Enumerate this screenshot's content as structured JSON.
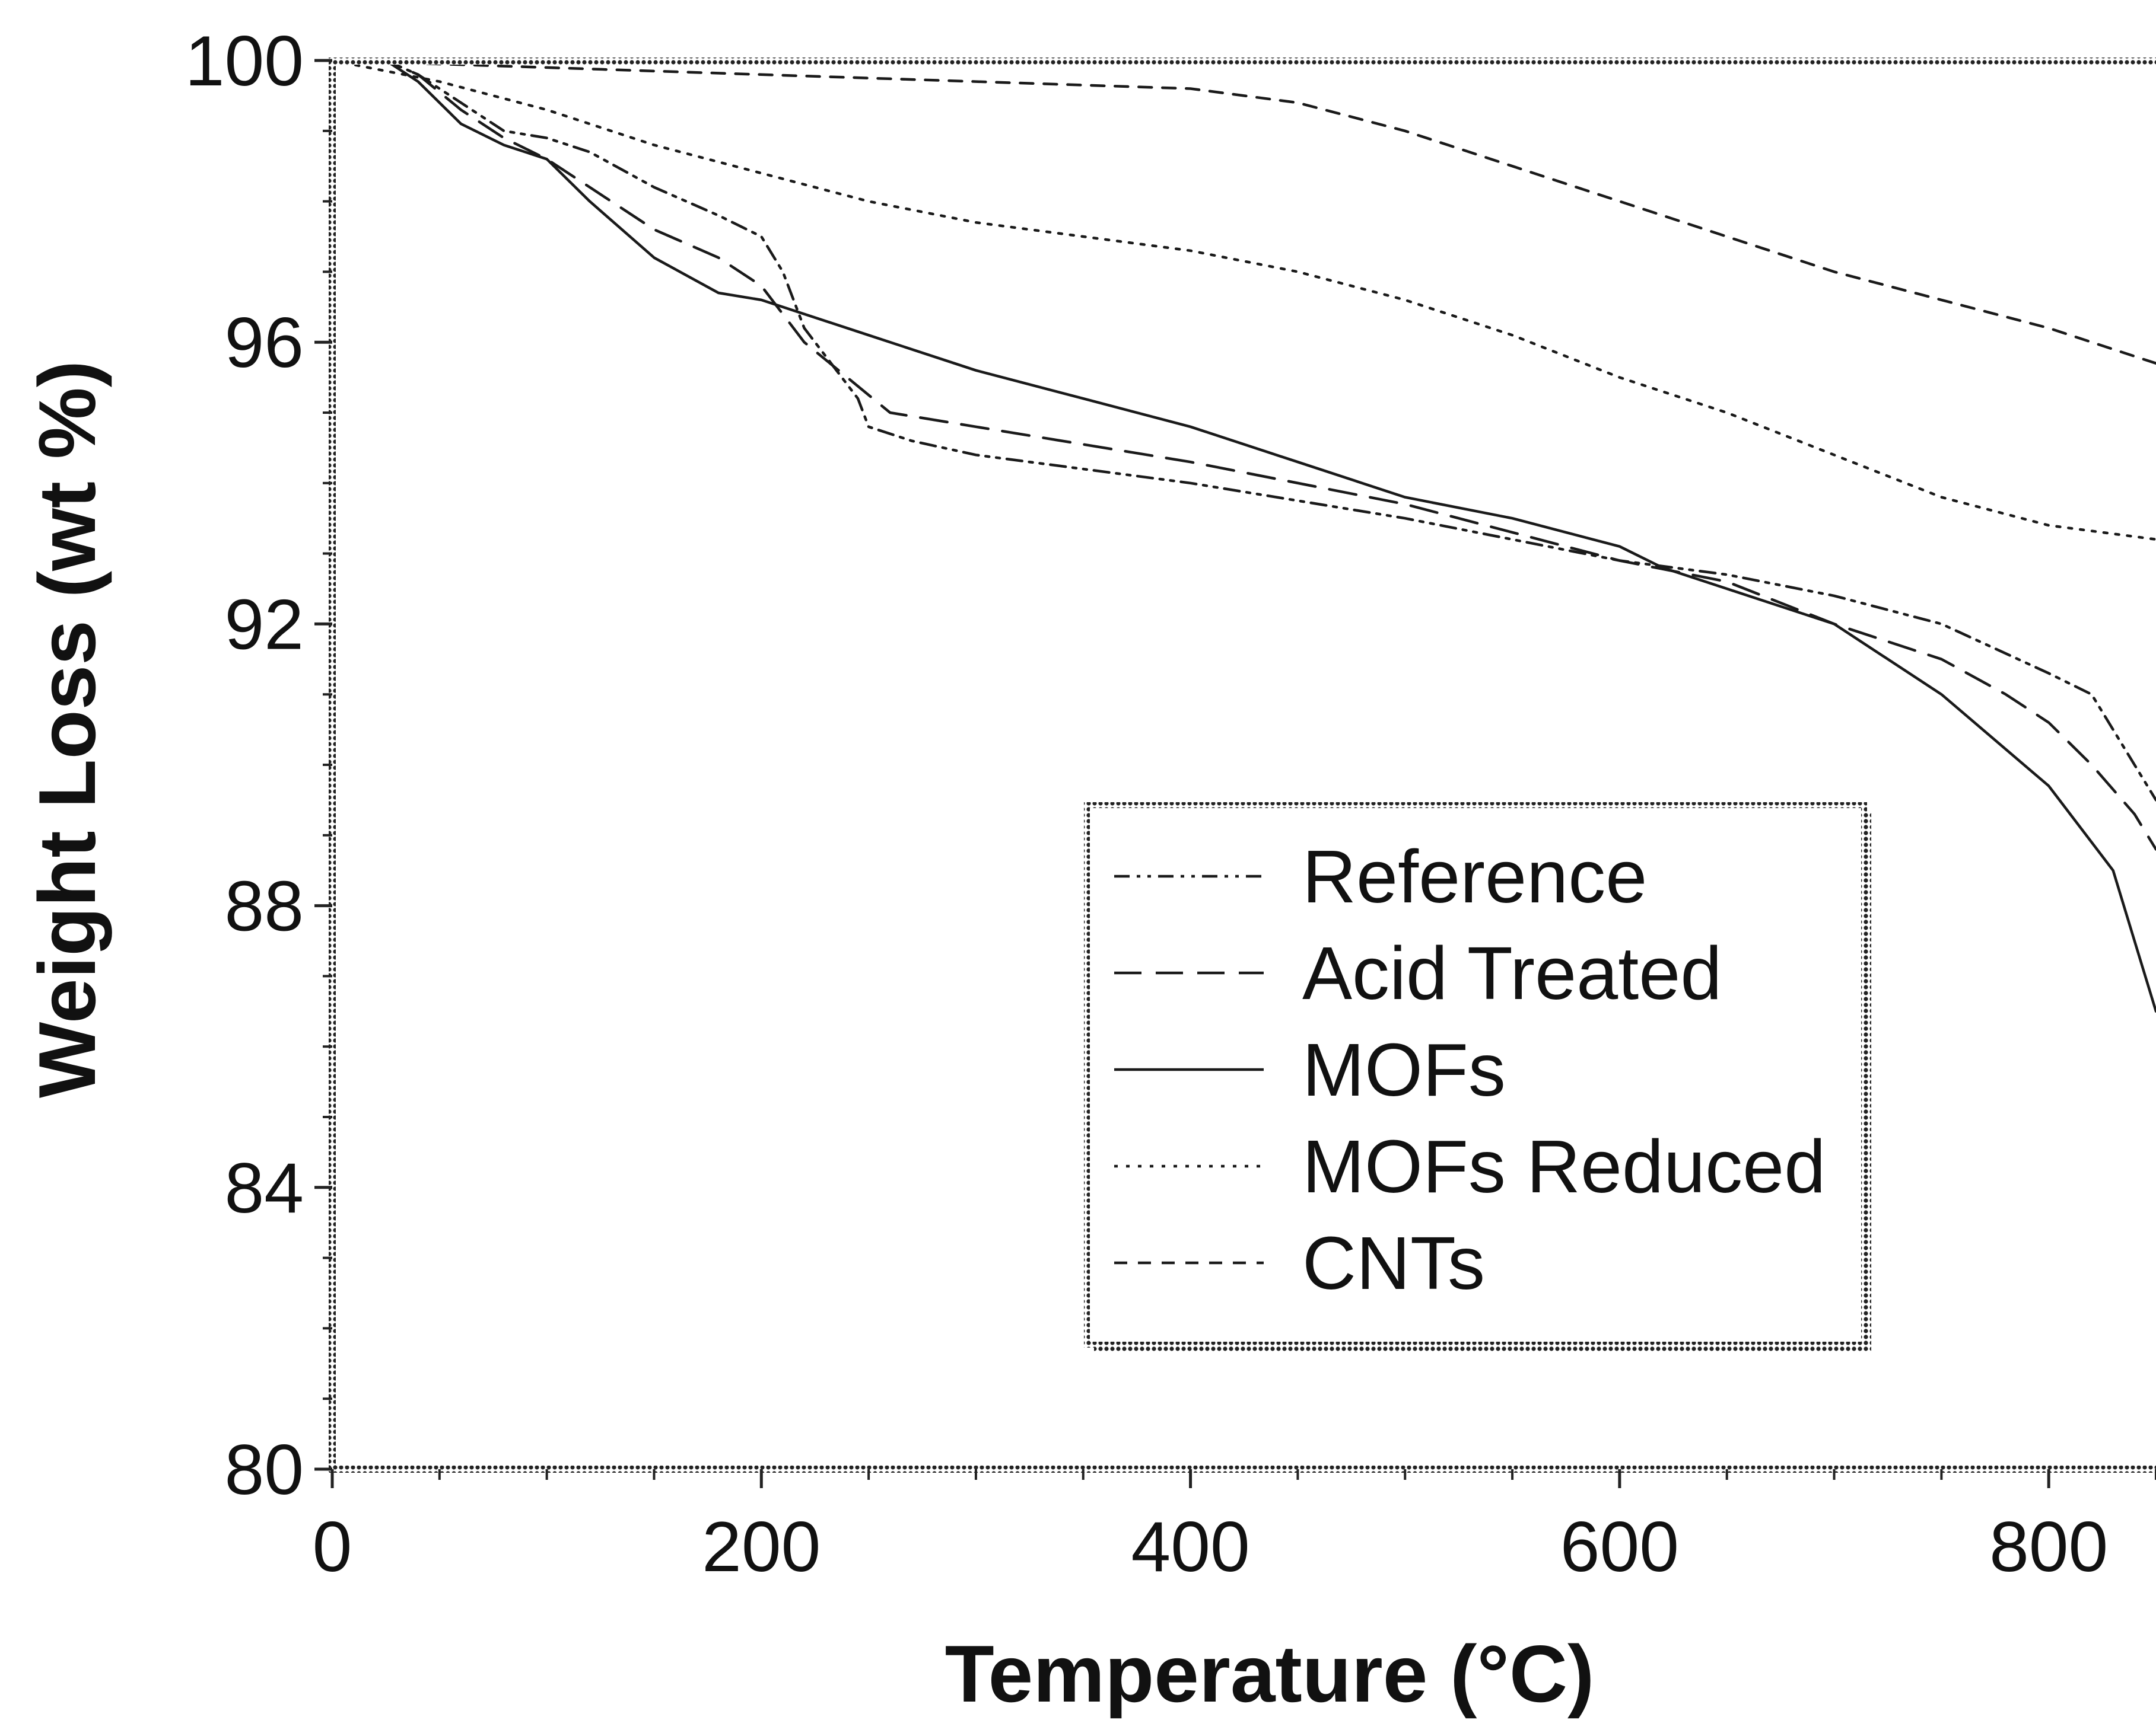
{
  "chart_data": {
    "type": "line",
    "title": "",
    "xlabel": "Temperature (°C)",
    "ylabel": "Weight Loss (wt %)",
    "xlim": [
      0,
      850
    ],
    "ylim": [
      80,
      100
    ],
    "x_ticks": [
      0,
      200,
      400,
      600,
      800
    ],
    "y_ticks": [
      80,
      84,
      88,
      92,
      96,
      100
    ],
    "grid": false,
    "legend_position": "center-right",
    "series": [
      {
        "name": "Reference",
        "dash": "dashdotdot",
        "points": [
          [
            0,
            100
          ],
          [
            25,
            100
          ],
          [
            40,
            99.8
          ],
          [
            60,
            99.4
          ],
          [
            80,
            99.0
          ],
          [
            100,
            98.9
          ],
          [
            120,
            98.7
          ],
          [
            150,
            98.2
          ],
          [
            180,
            97.8
          ],
          [
            200,
            97.5
          ],
          [
            210,
            97.0
          ],
          [
            220,
            96.2
          ],
          [
            235,
            95.6
          ],
          [
            245,
            95.2
          ],
          [
            250,
            94.8
          ],
          [
            270,
            94.6
          ],
          [
            300,
            94.4
          ],
          [
            400,
            94.0
          ],
          [
            500,
            93.5
          ],
          [
            600,
            92.9
          ],
          [
            650,
            92.7
          ],
          [
            700,
            92.4
          ],
          [
            750,
            92.0
          ],
          [
            800,
            91.3
          ],
          [
            820,
            91.0
          ],
          [
            840,
            90.0
          ],
          [
            850,
            89.5
          ]
        ]
      },
      {
        "name": "Acid Treated",
        "dash": "longdash",
        "points": [
          [
            0,
            100
          ],
          [
            25,
            100
          ],
          [
            40,
            99.8
          ],
          [
            60,
            99.3
          ],
          [
            80,
            98.9
          ],
          [
            100,
            98.6
          ],
          [
            120,
            98.2
          ],
          [
            150,
            97.6
          ],
          [
            180,
            97.2
          ],
          [
            200,
            96.8
          ],
          [
            220,
            96.0
          ],
          [
            240,
            95.5
          ],
          [
            260,
            95.0
          ],
          [
            300,
            94.8
          ],
          [
            400,
            94.3
          ],
          [
            500,
            93.7
          ],
          [
            600,
            92.9
          ],
          [
            650,
            92.6
          ],
          [
            700,
            92.0
          ],
          [
            750,
            91.5
          ],
          [
            780,
            91.0
          ],
          [
            800,
            90.6
          ],
          [
            820,
            90.0
          ],
          [
            840,
            89.3
          ],
          [
            850,
            88.8
          ]
        ]
      },
      {
        "name": "MOFs",
        "dash": "solid",
        "points": [
          [
            0,
            100
          ],
          [
            25,
            100
          ],
          [
            40,
            99.7
          ],
          [
            60,
            99.1
          ],
          [
            80,
            98.8
          ],
          [
            100,
            98.6
          ],
          [
            120,
            98.0
          ],
          [
            150,
            97.2
          ],
          [
            180,
            96.7
          ],
          [
            200,
            96.6
          ],
          [
            250,
            96.1
          ],
          [
            300,
            95.6
          ],
          [
            350,
            95.2
          ],
          [
            400,
            94.8
          ],
          [
            450,
            94.3
          ],
          [
            500,
            93.8
          ],
          [
            550,
            93.5
          ],
          [
            600,
            93.1
          ],
          [
            620,
            92.8
          ],
          [
            650,
            92.5
          ],
          [
            700,
            92.0
          ],
          [
            750,
            91.0
          ],
          [
            800,
            89.7
          ],
          [
            830,
            88.5
          ],
          [
            840,
            87.5
          ],
          [
            850,
            86.5
          ]
        ]
      },
      {
        "name": "MOFs Reduced",
        "dash": "dotted",
        "points": [
          [
            0,
            100
          ],
          [
            50,
            99.7
          ],
          [
            100,
            99.3
          ],
          [
            150,
            98.8
          ],
          [
            200,
            98.4
          ],
          [
            250,
            98.0
          ],
          [
            300,
            97.7
          ],
          [
            350,
            97.5
          ],
          [
            400,
            97.3
          ],
          [
            450,
            97.0
          ],
          [
            500,
            96.6
          ],
          [
            550,
            96.1
          ],
          [
            600,
            95.5
          ],
          [
            650,
            95.0
          ],
          [
            700,
            94.4
          ],
          [
            750,
            93.8
          ],
          [
            800,
            93.4
          ],
          [
            850,
            93.2
          ]
        ]
      },
      {
        "name": "CNTs",
        "dash": "shortdash",
        "points": [
          [
            0,
            100
          ],
          [
            100,
            99.9
          ],
          [
            200,
            99.8
          ],
          [
            300,
            99.7
          ],
          [
            400,
            99.6
          ],
          [
            450,
            99.4
          ],
          [
            500,
            99.0
          ],
          [
            550,
            98.5
          ],
          [
            600,
            98.0
          ],
          [
            650,
            97.5
          ],
          [
            700,
            97.0
          ],
          [
            750,
            96.6
          ],
          [
            800,
            96.2
          ],
          [
            850,
            95.7
          ]
        ]
      }
    ]
  }
}
